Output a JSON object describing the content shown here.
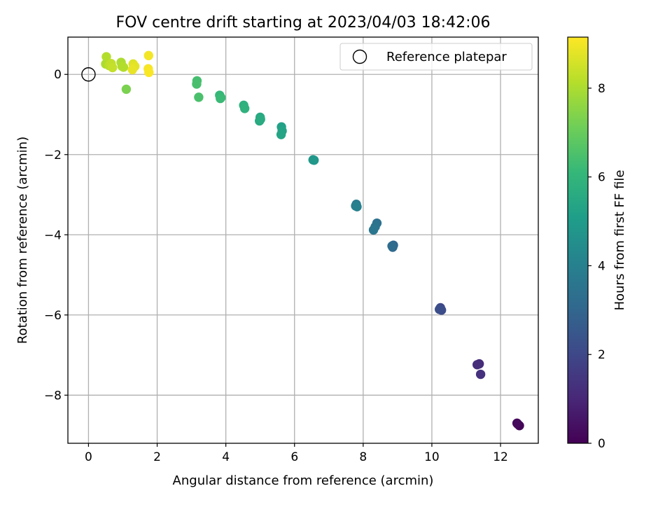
{
  "chart_data": {
    "type": "scatter",
    "title": "FOV centre drift starting at 2023/04/03 18:42:06",
    "xlabel": "Angular distance from reference (arcmin)",
    "ylabel": "Rotation from reference (arcmin)",
    "xlim": [
      -0.6,
      13.1
    ],
    "ylim": [
      -9.2,
      0.93
    ],
    "xticks": [
      0,
      2,
      4,
      6,
      8,
      10,
      12
    ],
    "yticks": [
      0,
      -2,
      -4,
      -6,
      -8
    ],
    "grid": true,
    "legend": {
      "placement": "top-right",
      "entries": [
        {
          "label": "Reference platepar",
          "marker": "open-circle",
          "color": "#000000"
        }
      ]
    },
    "reference_point": {
      "x": 0,
      "y": 0
    },
    "colorbar": {
      "label": "Hours from first FF file",
      "min": 0,
      "max": 9.15,
      "ticks": [
        0,
        2,
        4,
        6,
        8
      ],
      "colormap": "viridis",
      "stops": [
        "#440154",
        "#482878",
        "#3e4989",
        "#31688e",
        "#26828e",
        "#1f9e89",
        "#35b779",
        "#6ece58",
        "#b5de2b",
        "#fde725"
      ]
    },
    "points": [
      {
        "x": 12.5,
        "y": -8.72,
        "c": 0.0
      },
      {
        "x": 12.55,
        "y": -8.76,
        "c": 0.1
      },
      {
        "x": 12.48,
        "y": -8.7,
        "c": 0.2
      },
      {
        "x": 11.38,
        "y": -7.22,
        "c": 1.1
      },
      {
        "x": 11.32,
        "y": -7.24,
        "c": 1.2
      },
      {
        "x": 11.42,
        "y": -7.48,
        "c": 1.3
      },
      {
        "x": 10.25,
        "y": -5.82,
        "c": 2.0
      },
      {
        "x": 10.28,
        "y": -5.88,
        "c": 2.1
      },
      {
        "x": 10.22,
        "y": -5.86,
        "c": 2.2
      },
      {
        "x": 8.88,
        "y": -4.26,
        "c": 3.0
      },
      {
        "x": 8.86,
        "y": -4.31,
        "c": 3.1
      },
      {
        "x": 8.84,
        "y": -4.28,
        "c": 3.2
      },
      {
        "x": 8.4,
        "y": -3.71,
        "c": 3.4
      },
      {
        "x": 8.35,
        "y": -3.8,
        "c": 3.5
      },
      {
        "x": 8.3,
        "y": -3.88,
        "c": 3.6
      },
      {
        "x": 7.8,
        "y": -3.24,
        "c": 3.8
      },
      {
        "x": 7.78,
        "y": -3.28,
        "c": 3.9
      },
      {
        "x": 7.82,
        "y": -3.3,
        "c": 4.0
      },
      {
        "x": 6.57,
        "y": -2.14,
        "c": 4.8
      },
      {
        "x": 6.54,
        "y": -2.13,
        "c": 4.85
      },
      {
        "x": 5.62,
        "y": -1.31,
        "c": 5.2
      },
      {
        "x": 5.64,
        "y": -1.41,
        "c": 5.3
      },
      {
        "x": 5.61,
        "y": -1.5,
        "c": 5.35
      },
      {
        "x": 5.0,
        "y": -1.07,
        "c": 5.5
      },
      {
        "x": 4.98,
        "y": -1.16,
        "c": 5.55
      },
      {
        "x": 5.01,
        "y": -1.12,
        "c": 5.6
      },
      {
        "x": 4.52,
        "y": -0.77,
        "c": 5.8
      },
      {
        "x": 4.55,
        "y": -0.85,
        "c": 5.85
      },
      {
        "x": 3.82,
        "y": -0.52,
        "c": 6.1
      },
      {
        "x": 3.86,
        "y": -0.58,
        "c": 6.15
      },
      {
        "x": 3.84,
        "y": -0.6,
        "c": 6.2
      },
      {
        "x": 3.16,
        "y": -0.16,
        "c": 6.4
      },
      {
        "x": 3.15,
        "y": -0.24,
        "c": 6.45
      },
      {
        "x": 3.21,
        "y": -0.57,
        "c": 6.5
      },
      {
        "x": 1.1,
        "y": -0.37,
        "c": 7.3
      },
      {
        "x": 0.5,
        "y": 0.26,
        "c": 8.0
      },
      {
        "x": 0.52,
        "y": 0.44,
        "c": 8.1
      },
      {
        "x": 0.6,
        "y": 0.22,
        "c": 8.2
      },
      {
        "x": 0.66,
        "y": 0.27,
        "c": 8.3
      },
      {
        "x": 0.7,
        "y": 0.17,
        "c": 8.35
      },
      {
        "x": 0.95,
        "y": 0.3,
        "c": 8.0
      },
      {
        "x": 0.98,
        "y": 0.2,
        "c": 8.05
      },
      {
        "x": 1.02,
        "y": 0.18,
        "c": 8.1
      },
      {
        "x": 1.3,
        "y": 0.26,
        "c": 8.7
      },
      {
        "x": 1.35,
        "y": 0.2,
        "c": 8.8
      },
      {
        "x": 1.28,
        "y": 0.12,
        "c": 8.85
      },
      {
        "x": 1.75,
        "y": 0.47,
        "c": 9.0
      },
      {
        "x": 1.74,
        "y": 0.14,
        "c": 9.05
      },
      {
        "x": 1.76,
        "y": 0.05,
        "c": 9.1
      }
    ]
  }
}
